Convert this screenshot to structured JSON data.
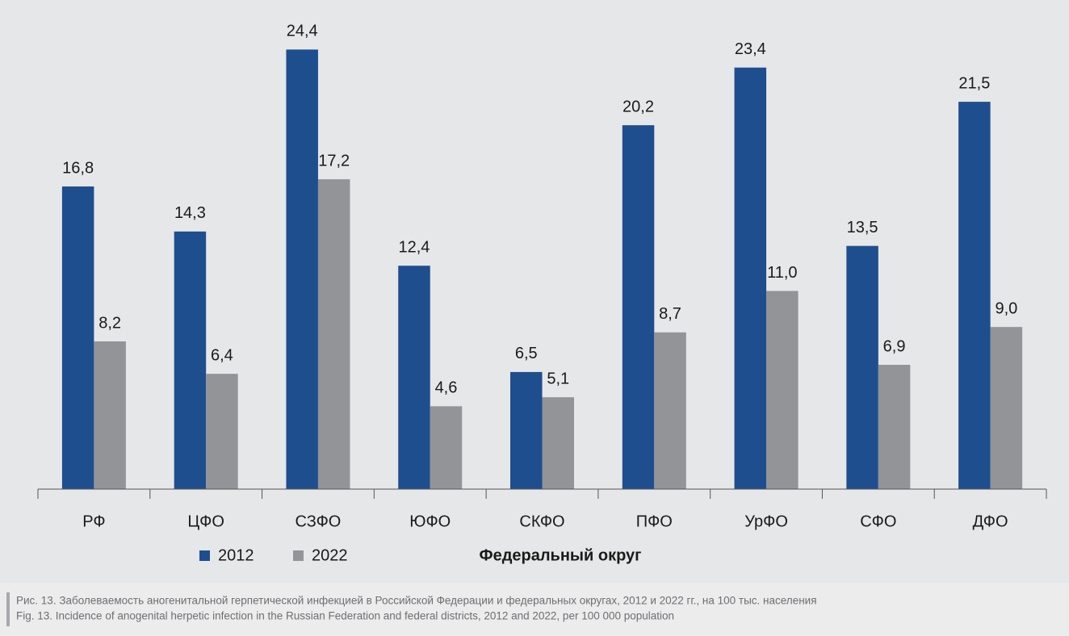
{
  "chart_data": {
    "type": "bar",
    "x_label": "Федеральный округ",
    "categories": [
      "РФ",
      "ЦФО",
      "СЗФО",
      "ЮФО",
      "СКФО",
      "ПФО",
      "УрФО",
      "СФО",
      "ДФО"
    ],
    "series": [
      {
        "name": "2012",
        "color": "#1f4e8f",
        "values": [
          16.8,
          14.3,
          24.4,
          12.4,
          6.5,
          20.2,
          23.4,
          13.5,
          21.5
        ],
        "value_labels": [
          "16,8",
          "14,3",
          "24,4",
          "12,4",
          "6,5",
          "20,2",
          "23,4",
          "13,5",
          "21,5"
        ]
      },
      {
        "name": "2022",
        "color": "#929497",
        "values": [
          8.2,
          6.4,
          17.2,
          4.6,
          5.1,
          8.7,
          11.0,
          6.9,
          9.0
        ],
        "value_labels": [
          "8,2",
          "6,4",
          "17,2",
          "4,6",
          "5,1",
          "8,7",
          "11,0",
          "6,9",
          "9,0"
        ]
      }
    ],
    "ylim": [
      0,
      25
    ]
  },
  "caption": {
    "ru": "Рис. 13. Заболеваемость аногенитальной герпетической инфекцией в Российской Федерации и федеральных округах, 2012 и 2022 гг., на 100 тыс. населения",
    "en": "Fig. 13. Incidence of anogenital herpetic infection in the Russian Federation and federal districts, 2012 and 2022, per 100 000 population"
  }
}
